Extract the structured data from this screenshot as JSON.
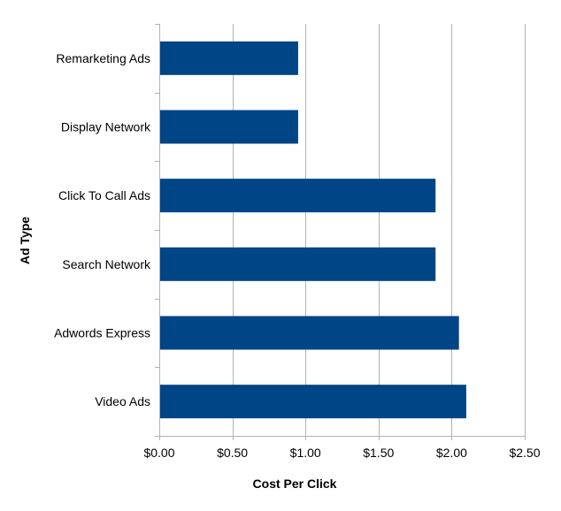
{
  "chart_data": {
    "type": "bar",
    "orientation": "horizontal",
    "categories": [
      "Remarketing Ads",
      "Display Network",
      "Click To Call Ads",
      "Search Network",
      "Adwords Express",
      "Video Ads"
    ],
    "values": [
      0.95,
      0.95,
      1.89,
      1.89,
      2.05,
      2.1
    ],
    "title": "",
    "xlabel": "Cost Per Click",
    "ylabel": "Ad Type",
    "xlim": [
      0,
      2.5
    ],
    "xticks": [
      0,
      0.5,
      1,
      1.5,
      2,
      2.5
    ],
    "xtick_labels": [
      "$0.00",
      "$0.50",
      "$1.00",
      "$1.50",
      "$2.00",
      "$2.50"
    ],
    "grid": "vertical",
    "legend": "none",
    "bar_color": "#004586",
    "grid_color": "#b3b3b3"
  }
}
